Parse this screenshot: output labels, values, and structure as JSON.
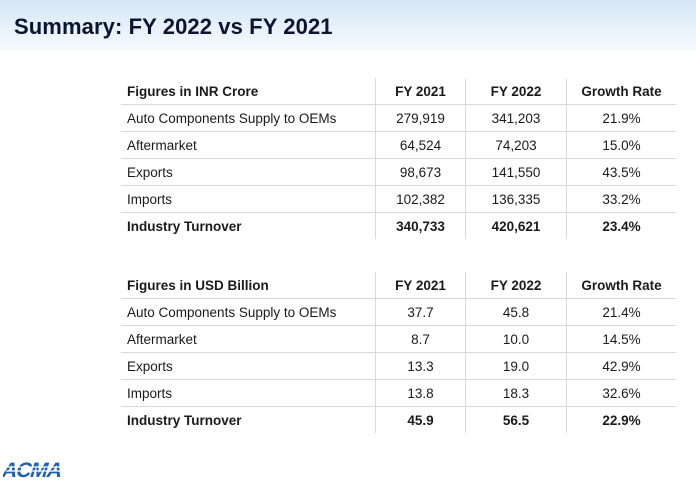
{
  "title": "Summary: FY 2022 vs FY 2021",
  "inr_table": {
    "headers": [
      "Figures in INR Crore",
      "FY 2021",
      "FY 2022",
      "Growth Rate"
    ],
    "rows": [
      [
        "Auto Components Supply to OEMs",
        "279,919",
        "341,203",
        "21.9%"
      ],
      [
        "Aftermarket",
        "64,524",
        "74,203",
        "15.0%"
      ],
      [
        "Exports",
        "98,673",
        "141,550",
        "43.5%"
      ],
      [
        "Imports",
        "102,382",
        "136,335",
        "33.2%"
      ],
      [
        "Industry Turnover",
        "340,733",
        "420,621",
        "23.4%"
      ]
    ]
  },
  "usd_table": {
    "headers": [
      "Figures in USD Billion",
      "FY 2021",
      "FY 2022",
      "Growth Rate"
    ],
    "rows": [
      [
        "Auto Components Supply to OEMs",
        "37.7",
        "45.8",
        "21.4%"
      ],
      [
        "Aftermarket",
        "8.7",
        "10.0",
        "14.5%"
      ],
      [
        "Exports",
        "13.3",
        "19.0",
        "42.9%"
      ],
      [
        "Imports",
        "13.8",
        "18.3",
        "32.6%"
      ],
      [
        "Industry Turnover",
        "45.9",
        "56.5",
        "22.9%"
      ]
    ]
  },
  "logo": {
    "text": "ACMA",
    "color": "#1f5fae"
  },
  "colors": {
    "title": "#0b1430",
    "header_band": "#dbe9f7",
    "grid": "#d9d9d9"
  }
}
